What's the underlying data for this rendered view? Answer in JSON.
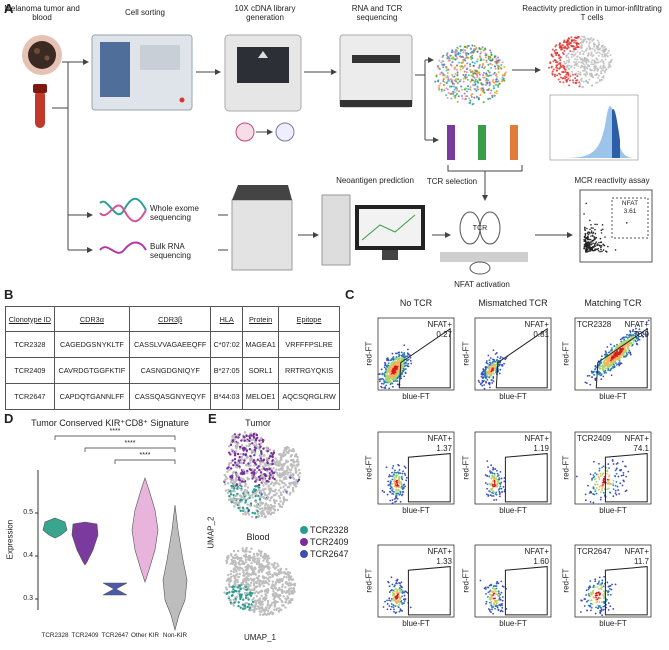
{
  "panel_a": {
    "label": "A",
    "sample": "Melanoma tumor and blood",
    "cell_sorting": "Cell sorting",
    "library": "10X cDNA library generation",
    "sequencing": "RNA and TCR sequencing",
    "reactivity": "Reactivity prediction in tumor-infiltrating T cells",
    "tcr_selection": "TCR selection",
    "wes": "Whole exome sequencing",
    "bulk_rna": "Bulk RNA sequencing",
    "neoantigen": "Neoantigen prediction",
    "assay": "MCR reactivity assay",
    "tcr": "TCR",
    "nfat_activation": "NFAT activation",
    "assay_gate": "NFAT",
    "assay_value": "3.61"
  },
  "panel_b": {
    "label": "B",
    "columns": [
      "Clonotype ID",
      "CDR3α",
      "CDR3β",
      "HLA",
      "Protein",
      "Epitope"
    ],
    "rows": [
      [
        "TCR2328",
        "CAGEDGSNYKLTF",
        "CASSLVVAGAEEQFF",
        "C*07:02",
        "MAGEA1",
        "VRFFFPSLRE"
      ],
      [
        "TCR2409",
        "CAVRDGTGGFKTIF",
        "CASNGDGNIQYF",
        "B*27:05",
        "SORL1",
        "RRTRGYQKIS"
      ],
      [
        "TCR2647",
        "CAPDQTGANNLFF",
        "CASSQASGNYEQYF",
        "B*44:03",
        "MELOE1",
        "AQCSQRGLRW"
      ]
    ]
  },
  "panel_c": {
    "label": "C",
    "columns": [
      "No TCR",
      "Mismatched TCR",
      "Matching TCR"
    ],
    "gate_label": "NFAT+",
    "y_axis": "red-FT",
    "x_axis": "blue-FT",
    "rows": [
      {
        "clonotype": "TCR2328",
        "values": [
          "0.27",
          "0.81",
          "70.9"
        ]
      },
      {
        "clonotype": "TCR2409",
        "values": [
          "1.37",
          "1.19",
          "74.1"
        ]
      },
      {
        "clonotype": "TCR2647",
        "values": [
          "1.33",
          "1.60",
          "11.7"
        ]
      }
    ]
  },
  "panel_d": {
    "label": "D",
    "title": "Tumor Conserved KIR⁺CD8⁺ Signature",
    "y_label": "Expression",
    "yticks": [
      0.3,
      0.4,
      0.5
    ],
    "categories": [
      "TCR2328",
      "TCR2409",
      "TCR2647",
      "Other KIR",
      "Non-KIR"
    ],
    "colors": [
      "#3aa58f",
      "#7b3a9e",
      "#4a5aa8",
      "#e8b4dc",
      "#bdbdbd"
    ],
    "significance": "****"
  },
  "panel_e": {
    "label": "E",
    "panels": [
      "Tumor",
      "Blood"
    ],
    "y_label": "UMAP_2",
    "x_label": "UMAP_1",
    "legend": [
      {
        "name": "TCR2328",
        "color": "#2a9d8f"
      },
      {
        "name": "TCR2409",
        "color": "#7b2d9e"
      },
      {
        "name": "TCR2647",
        "color": "#3f4fb0"
      }
    ]
  }
}
